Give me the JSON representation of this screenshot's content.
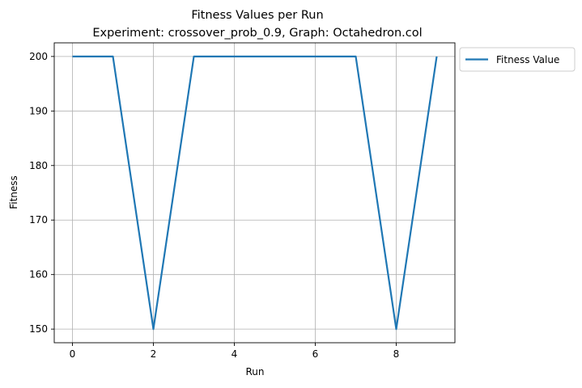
{
  "chart_data": {
    "type": "line",
    "title": "Fitness Values per Run",
    "subtitle": "Experiment: crossover_prob_0.9, Graph: Octahedron.col",
    "xlabel": "Run",
    "ylabel": "Fitness",
    "x": [
      0,
      1,
      2,
      3,
      4,
      5,
      6,
      7,
      8,
      9
    ],
    "series": [
      {
        "name": "Fitness Value",
        "values": [
          200,
          200,
          150,
          200,
          200,
          200,
          200,
          200,
          150,
          200
        ],
        "color": "#1f77b4"
      }
    ],
    "xlim": [
      -0.45,
      9.45
    ],
    "ylim": [
      147.5,
      202.5
    ],
    "xticks": [
      0,
      2,
      4,
      6,
      8
    ],
    "yticks": [
      150,
      160,
      170,
      180,
      190,
      200
    ],
    "grid": true,
    "legend_position": "outside-top-right"
  }
}
